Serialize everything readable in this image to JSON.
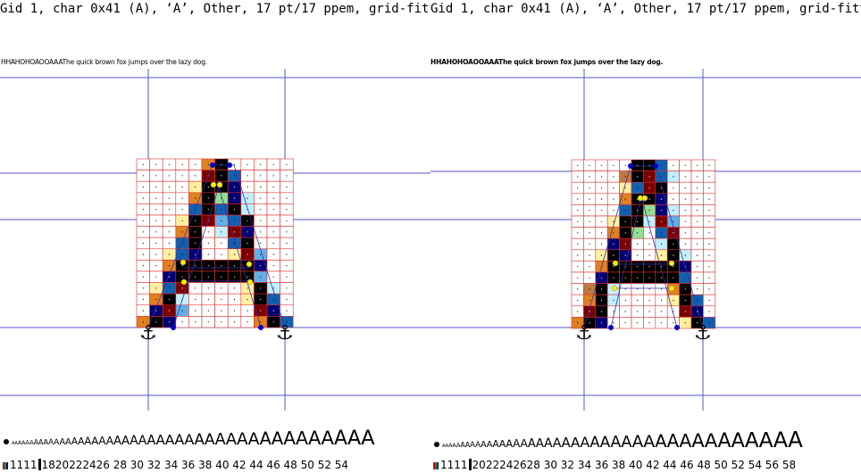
{
  "header": {
    "left": "Gid 1, char 0x41 (A), ‘A’, Other, 17 pt/17 ppem, grid-fitted",
    "right": "Gid 1, char 0x41 (A), ‘A’, Other, 17 pt/17 ppem, grid-fitted"
  },
  "sample_text": {
    "left": "HHAHOHOAOOAAAThe quick brown fox jumps over the lazy dog.",
    "right": "HHAHOHOAOOAAAThe quick brown fox jumps over the lazy dog."
  },
  "waterfall": {
    "left": "AAAAAAAAAAAAAAAAAAAAAAAAAAAAAAAAAAAAAAAAAAA",
    "right": "AAAAAAAAAAAAAAAAAAAAAAAAAAAAAAAAAAAAAAAA"
  },
  "sizes": {
    "left_prefix": "1111",
    "left": "1820222426 28 30 32 34 36 38 40 42 44 46 48 50 52 54",
    "right_prefix": "1111",
    "right": "2022242628 30 32 34 36 38 40 42 44 46 48 50 52 54 56 58"
  },
  "colors": {
    "guide_line": "#5555cc",
    "pixel_grid": "#dd3333",
    "point_on": "#0000cc",
    "point_control": "#ffee00",
    "outline": "#3333aa"
  },
  "icons": [
    "anchor-icon",
    "point-marker-icon"
  ]
}
